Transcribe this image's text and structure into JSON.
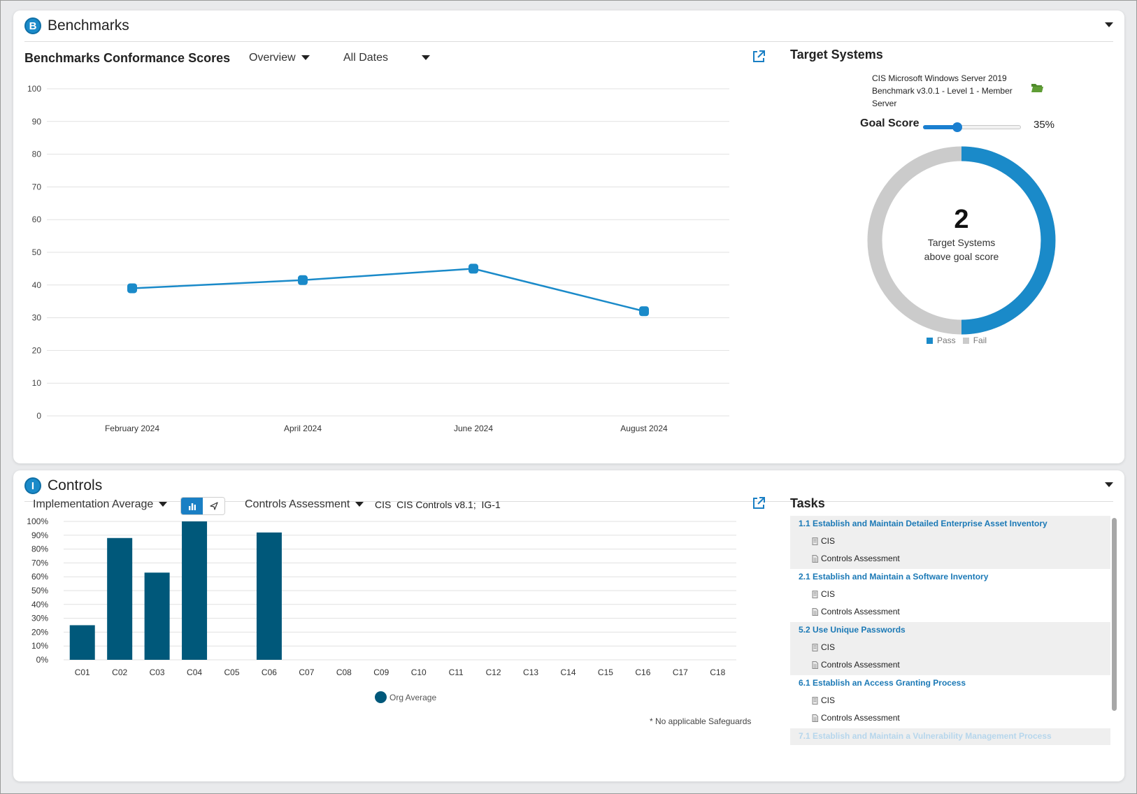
{
  "benchmarks": {
    "title": "Benchmarks",
    "logo_letter": "B",
    "chart_title": "Benchmarks Conformance Scores",
    "view_dropdown": "Overview",
    "date_dropdown": "All Dates",
    "target": {
      "title": "Target Systems",
      "benchmark_name": "CIS Microsoft Windows Server 2019 Benchmark v3.0.1 - Level 1 - Member Server",
      "goal_label": "Goal Score",
      "goal_value": "35%",
      "goal_fraction": 0.35,
      "count": "2",
      "caption_line1": "Target Systems",
      "caption_line2": "above goal score",
      "pass_fraction": 0.5,
      "legend": [
        "Pass",
        "Fail"
      ],
      "colors": {
        "pass": "#1a8ac9",
        "fail": "#cbcbcb"
      }
    }
  },
  "controls": {
    "title": "Controls",
    "logo_letter": "I",
    "metric_dropdown": "Implementation Average",
    "assessment_dropdown": "Controls Assessment",
    "framework": "CIS  CIS Controls v8.1;  IG-1",
    "legend": "Org Average",
    "footnote": "* No applicable Safeguards",
    "tasks_title": "Tasks",
    "tasks": [
      {
        "title": "1.1 Establish and Maintain Detailed Enterprise Asset Inventory",
        "sub1": "CIS",
        "sub2": "Controls Assessment"
      },
      {
        "title": "2.1 Establish and Maintain a Software Inventory",
        "sub1": "CIS",
        "sub2": "Controls Assessment"
      },
      {
        "title": "5.2 Use Unique Passwords",
        "sub1": "CIS",
        "sub2": "Controls Assessment"
      },
      {
        "title": "6.1 Establish an Access Granting Process",
        "sub1": "CIS",
        "sub2": "Controls Assessment"
      },
      {
        "title": "7.1 Establish and Maintain a Vulnerability Management Process",
        "sub1": "",
        "sub2": ""
      }
    ]
  },
  "chart_data": [
    {
      "type": "line",
      "title": "Benchmarks Conformance Scores",
      "categories": [
        "February 2024",
        "April 2024",
        "June 2024",
        "August 2024"
      ],
      "series": [
        {
          "values": [
            39,
            41.5,
            45,
            32
          ]
        }
      ],
      "ylim": [
        0,
        100
      ],
      "yticks": [
        0,
        10,
        20,
        30,
        40,
        50,
        60,
        70,
        80,
        90,
        100
      ],
      "color": "#1a8ac9",
      "grid": true
    },
    {
      "type": "bar",
      "categories": [
        "C01",
        "C02",
        "C03",
        "C04",
        "C05",
        "C06",
        "C07",
        "C08",
        "C09",
        "C10",
        "C11",
        "C12",
        "C13",
        "C14",
        "C15",
        "C16",
        "C17",
        "C18"
      ],
      "series": [
        {
          "name": "Org Average",
          "values": [
            25,
            88,
            63,
            100,
            null,
            92,
            null,
            null,
            null,
            null,
            null,
            null,
            null,
            null,
            null,
            null,
            null,
            null
          ]
        }
      ],
      "ylim": [
        0,
        100
      ],
      "yticks": [
        "0%",
        "10%",
        "20%",
        "30%",
        "40%",
        "50%",
        "60%",
        "70%",
        "80%",
        "90%",
        "100%"
      ],
      "color": "#00587a",
      "legend_position": "bottom",
      "grid": true
    }
  ]
}
